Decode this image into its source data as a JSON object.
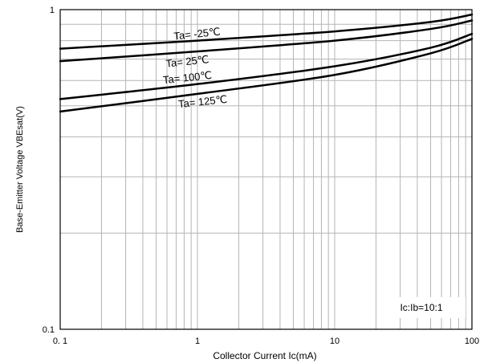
{
  "chart_data": {
    "type": "line",
    "title": "",
    "xlabel": "Collector Current   Ic(mA)",
    "ylabel": "Base-Emitter Voltage  VBEsat(V)",
    "xscale": "log",
    "yscale": "log",
    "xlim": [
      0.1,
      100
    ],
    "ylim": [
      0.1,
      1
    ],
    "grid": true,
    "x_ticks": [
      0.1,
      1,
      10,
      100
    ],
    "x_tick_labels": [
      "0. 1",
      "1",
      "10",
      "100"
    ],
    "y_ticks": [
      0.1,
      1
    ],
    "y_tick_labels": [
      "0.1",
      "1"
    ],
    "annotation": "Ic:Ib=10:1",
    "line_color": "#000000",
    "grid_color": "#b5b5b5",
    "series": [
      {
        "name": "Ta= -25℃",
        "x": [
          0.1,
          1,
          10,
          50,
          100
        ],
        "y": [
          0.755,
          0.8,
          0.855,
          0.915,
          0.965
        ]
      },
      {
        "name": "Ta= 25℃",
        "x": [
          0.1,
          1,
          10,
          50,
          100
        ],
        "y": [
          0.69,
          0.74,
          0.8,
          0.87,
          0.925
        ]
      },
      {
        "name": "Ta= 100℃",
        "x": [
          0.1,
          1,
          10,
          50,
          100
        ],
        "y": [
          0.525,
          0.585,
          0.665,
          0.76,
          0.84
        ]
      },
      {
        "name": "Ta= 125℃",
        "x": [
          0.1,
          1,
          10,
          50,
          100
        ],
        "y": [
          0.48,
          0.545,
          0.625,
          0.73,
          0.81
        ]
      }
    ]
  }
}
